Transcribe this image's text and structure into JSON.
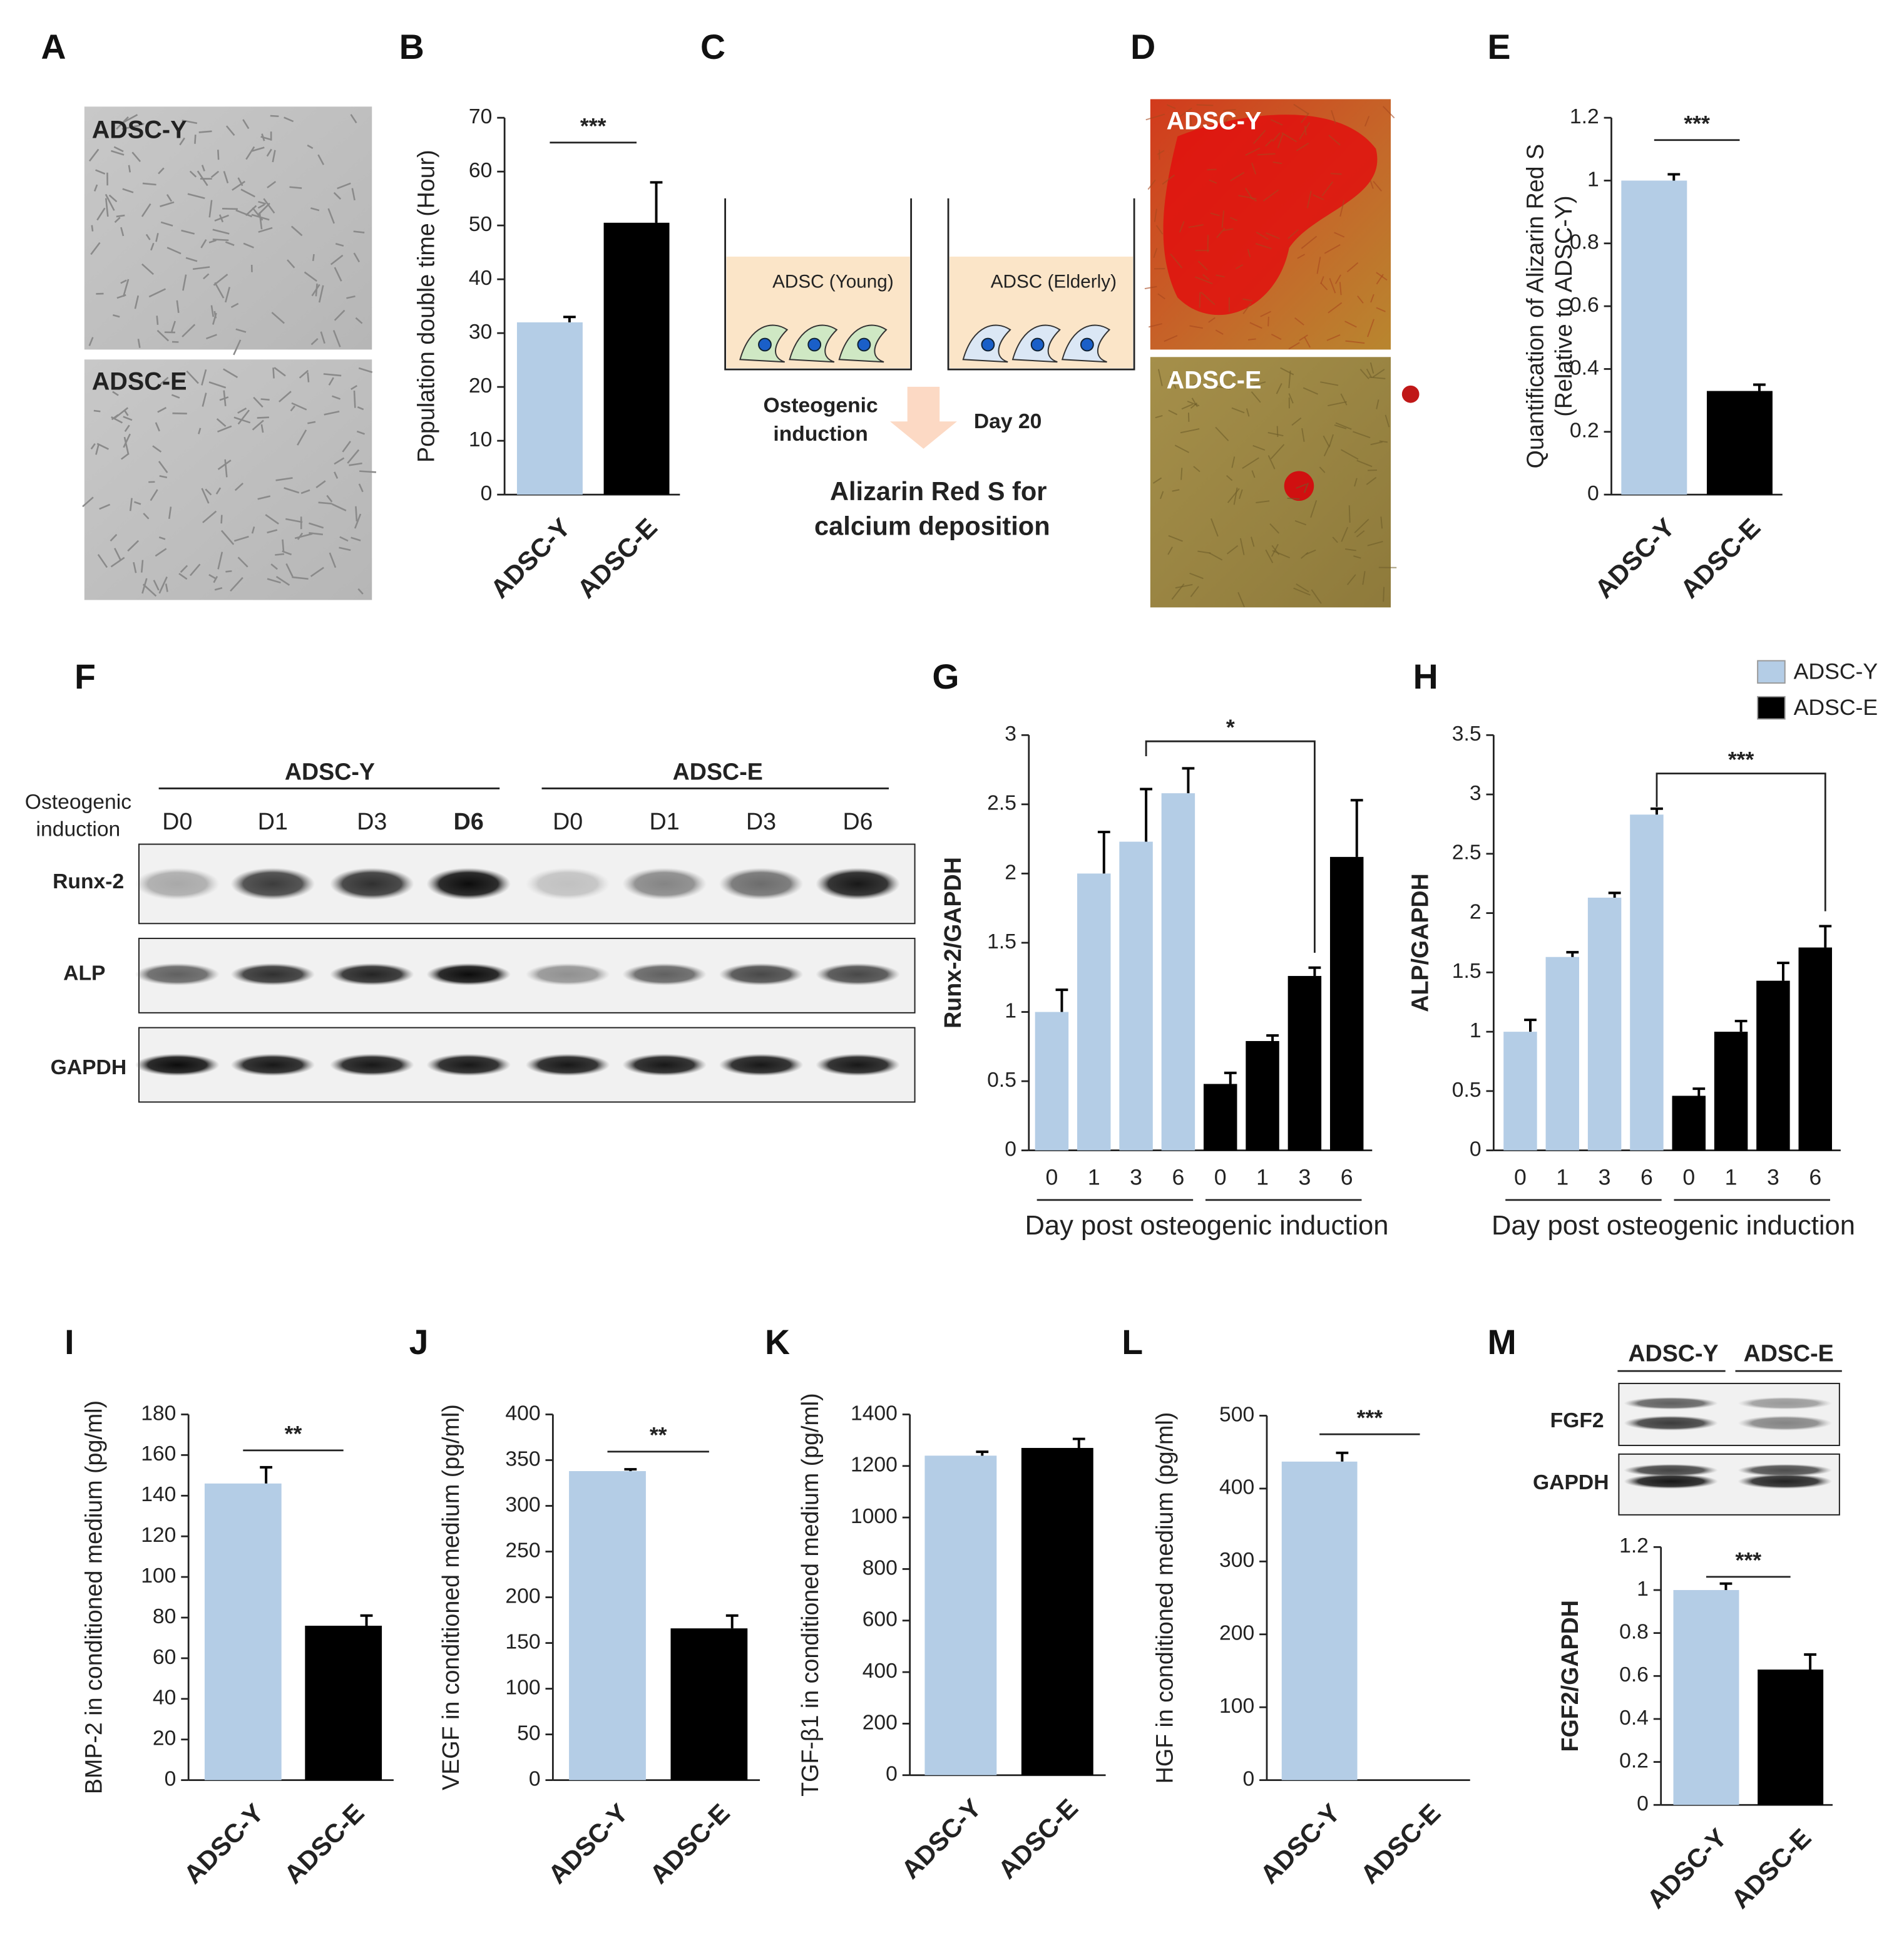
{
  "panel_labels": [
    "A",
    "B",
    "C",
    "D",
    "E",
    "F",
    "G",
    "H",
    "I",
    "J",
    "K",
    "L",
    "M"
  ],
  "panel_a": {
    "labels": [
      "ADSC-Y",
      "ADSC-E"
    ]
  },
  "panel_c": {
    "wells": [
      "ADSC (Young)",
      "ADSC (Elderly)"
    ],
    "step": [
      "Osteogenic",
      "induction"
    ],
    "time": "Day 20",
    "readout": [
      "Alizarin Red S for",
      "calcium deposition"
    ]
  },
  "panel_d": {
    "labels": [
      "ADSC-Y",
      "ADSC-E"
    ]
  },
  "panel_f": {
    "row_header": [
      "Osteogenic",
      "induction"
    ],
    "groups": [
      "ADSC-Y",
      "ADSC-E"
    ],
    "lanes": [
      "D0",
      "D1",
      "D3",
      "D6",
      "D0",
      "D1",
      "D3",
      "D6"
    ],
    "rows": [
      "Runx-2",
      "ALP",
      "GAPDH"
    ]
  },
  "panel_m_blot": {
    "groups": [
      "ADSC-Y",
      "ADSC-E"
    ],
    "rows": [
      "FGF2",
      "GAPDH"
    ]
  },
  "chart_data": [
    {
      "type": "bar",
      "categories": [
        "ADSC-Y",
        "ADSC-E"
      ],
      "values": [
        32,
        50.5
      ],
      "errors": [
        1,
        7.5
      ],
      "colors": [
        "#b4cde6",
        "#000000"
      ],
      "ylabel": [
        "Population  double time (Hour)"
      ],
      "ylim": [
        0,
        70
      ],
      "yticks": [
        0,
        10,
        20,
        30,
        40,
        50,
        60,
        70
      ],
      "significance": "***"
    },
    {
      "type": "bar",
      "categories": [
        "ADSC-Y",
        "ADSC-E"
      ],
      "values": [
        1.0,
        0.33
      ],
      "errors": [
        0.02,
        0.02
      ],
      "colors": [
        "#b4cde6",
        "#000000"
      ],
      "ylabel": [
        "Quantification of Alizarin Red S",
        "(Relative  to ADSC-Y)"
      ],
      "ylim": [
        0,
        1.2
      ],
      "yticks": [
        0,
        0.2,
        0.4,
        0.6,
        0.8,
        1,
        1.2
      ],
      "significance": "***"
    },
    {
      "type": "grouped_bar",
      "categories": [
        "0",
        "1",
        "3",
        "6"
      ],
      "series": [
        {
          "name": "ADSC-Y",
          "color": "#b4cde6",
          "values": [
            1.0,
            2.0,
            2.23,
            2.58
          ],
          "errors": [
            0.16,
            0.3,
            0.38,
            0.18
          ]
        },
        {
          "name": "ADSC-E",
          "color": "#000000",
          "values": [
            0.48,
            0.79,
            1.26,
            2.12
          ],
          "errors": [
            0.08,
            0.04,
            0.06,
            0.41
          ]
        }
      ],
      "ylabel": [
        "Runx-2/GAPDH"
      ],
      "xlabel": "Day post osteogenic induction",
      "ylim": [
        0,
        3
      ],
      "yticks": [
        0,
        0.5,
        1,
        1.5,
        2,
        2.5,
        3
      ],
      "significance": "*",
      "legend": false
    },
    {
      "type": "grouped_bar",
      "categories": [
        "0",
        "1",
        "3",
        "6"
      ],
      "series": [
        {
          "name": "ADSC-Y",
          "color": "#b4cde6",
          "values": [
            1.0,
            1.63,
            2.13,
            2.83
          ],
          "errors": [
            0.1,
            0.04,
            0.04,
            0.05
          ]
        },
        {
          "name": "ADSC-E",
          "color": "#000000",
          "values": [
            0.46,
            1.0,
            1.43,
            1.71
          ],
          "errors": [
            0.06,
            0.09,
            0.15,
            0.18
          ]
        }
      ],
      "ylabel": [
        "ALP/GAPDH"
      ],
      "xlabel": "Day post osteogenic induction",
      "ylim": [
        0,
        3.5
      ],
      "yticks": [
        0,
        0.5,
        1,
        1.5,
        2,
        2.5,
        3,
        3.5
      ],
      "significance": "***",
      "legend": true
    },
    {
      "type": "bar",
      "categories": [
        "ADSC-Y",
        "ADSC-E"
      ],
      "values": [
        146,
        76
      ],
      "errors": [
        8,
        5
      ],
      "colors": [
        "#b4cde6",
        "#000000"
      ],
      "ylabel": [
        "BMP-2 in conditioned medium (pg/ml)"
      ],
      "ylim": [
        0,
        180
      ],
      "yticks": [
        0,
        20,
        40,
        60,
        80,
        100,
        120,
        140,
        160,
        180
      ],
      "significance": "**"
    },
    {
      "type": "bar",
      "categories": [
        "ADSC-Y",
        "ADSC-E"
      ],
      "values": [
        338,
        166
      ],
      "errors": [
        2,
        14
      ],
      "colors": [
        "#b4cde6",
        "#000000"
      ],
      "ylabel": [
        "VEGF  in  conditioned medium (pg/ml)"
      ],
      "ylim": [
        0,
        400
      ],
      "yticks": [
        0,
        50,
        100,
        150,
        200,
        250,
        300,
        350,
        400
      ],
      "significance": "**"
    },
    {
      "type": "bar",
      "categories": [
        "ADSC-Y",
        "ADSC-E"
      ],
      "values": [
        1240,
        1270
      ],
      "errors": [
        15,
        35
      ],
      "colors": [
        "#b4cde6",
        "#000000"
      ],
      "ylabel": [
        "TGF-β1 in conditioned medium (pg/ml)"
      ],
      "ylim": [
        0,
        1400
      ],
      "yticks": [
        0,
        200,
        400,
        600,
        800,
        1000,
        1200,
        1400
      ]
    },
    {
      "type": "bar",
      "categories": [
        "ADSC-Y",
        "ADSC-E"
      ],
      "values": [
        437,
        0
      ],
      "errors": [
        12,
        0
      ],
      "colors": [
        "#b4cde6",
        "#000000"
      ],
      "ylabel": [
        "HGF  in  conditioned medium (pg/ml)"
      ],
      "ylim": [
        0,
        500
      ],
      "yticks": [
        0,
        100,
        200,
        300,
        400,
        500
      ],
      "significance": "***"
    },
    {
      "type": "bar",
      "categories": [
        "ADSC-Y",
        "ADSC-E"
      ],
      "values": [
        1.0,
        0.63
      ],
      "errors": [
        0.03,
        0.07
      ],
      "colors": [
        "#b4cde6",
        "#000000"
      ],
      "ylabel": [
        "FGF2/GAPDH"
      ],
      "ylim": [
        0,
        1.2
      ],
      "yticks": [
        0,
        0.2,
        0.4,
        0.6,
        0.8,
        1,
        1.2
      ],
      "significance": "***"
    }
  ]
}
